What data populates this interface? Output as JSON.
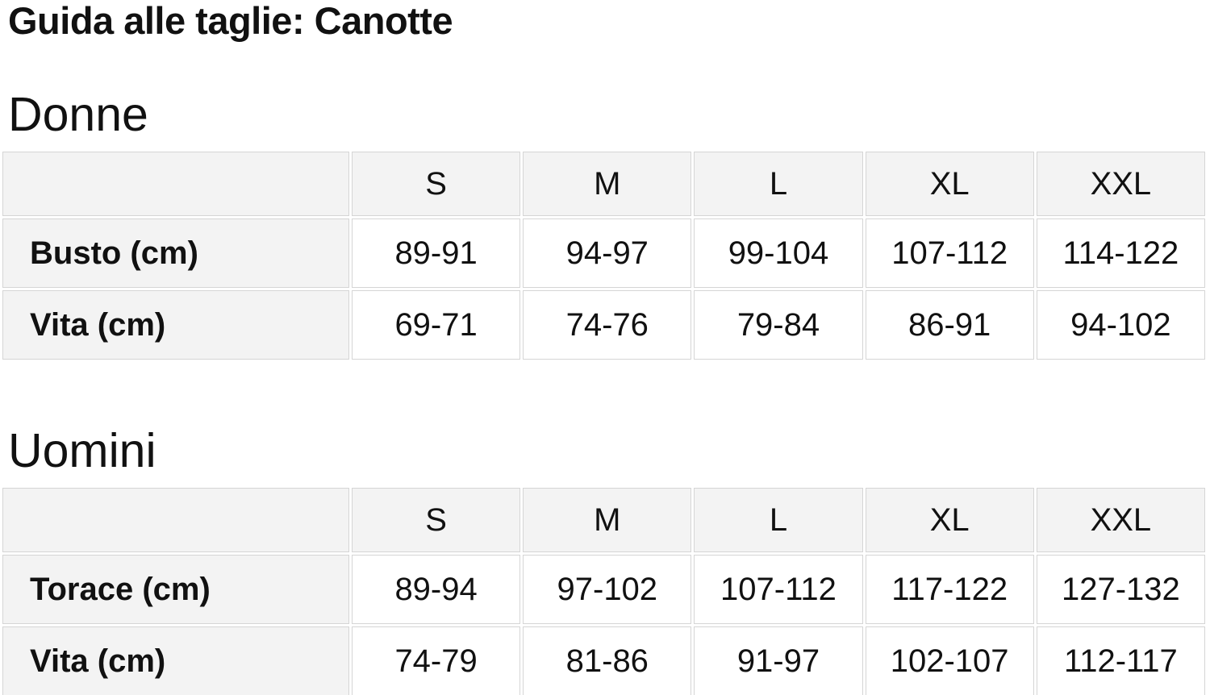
{
  "title": "Guida alle taglie: Canotte",
  "colors": {
    "header_cell_bg": "#f3f3f3",
    "value_cell_bg": "#ffffff",
    "cell_border": "#d5d5d5",
    "text": "#111111"
  },
  "sections": [
    {
      "heading": "Donne",
      "table": {
        "columns": [
          "S",
          "M",
          "L",
          "XL",
          "XXL"
        ],
        "rows": [
          {
            "label": "Busto (cm)",
            "values": [
              "89-91",
              "94-97",
              "99-104",
              "107-112",
              "114-122"
            ]
          },
          {
            "label": "Vita (cm)",
            "values": [
              "69-71",
              "74-76",
              "79-84",
              "86-91",
              "94-102"
            ]
          }
        ]
      }
    },
    {
      "heading": "Uomini",
      "table": {
        "columns": [
          "S",
          "M",
          "L",
          "XL",
          "XXL"
        ],
        "rows": [
          {
            "label": "Torace (cm)",
            "values": [
              "89-94",
              "97-102",
              "107-112",
              "117-122",
              "127-132"
            ]
          },
          {
            "label": "Vita (cm)",
            "values": [
              "74-79",
              "81-86",
              "91-97",
              "102-107",
              "112-117"
            ]
          }
        ]
      }
    }
  ]
}
